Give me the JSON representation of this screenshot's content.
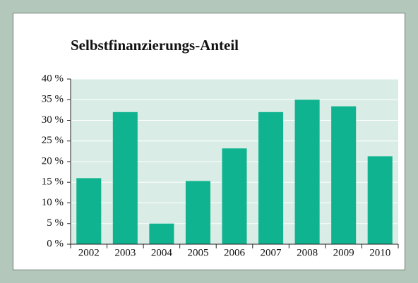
{
  "chart_data": {
    "type": "bar",
    "title": "Selbstfinanzierungs-Anteil",
    "categories": [
      "2002",
      "2003",
      "2004",
      "2005",
      "2006",
      "2007",
      "2008",
      "2009",
      "2010"
    ],
    "values": [
      16,
      32,
      5,
      15.3,
      23.2,
      32,
      35,
      33.4,
      21.3
    ],
    "color": "#10b38f",
    "ylim": [
      0,
      40
    ],
    "yticks": [
      {
        "value": 0,
        "label": "0 %"
      },
      {
        "value": 5,
        "label": "5 %"
      },
      {
        "value": 10,
        "label": "10 %"
      },
      {
        "value": 15,
        "label": "15 %"
      },
      {
        "value": 20,
        "label": "20 %"
      },
      {
        "value": 25,
        "label": "25 %"
      },
      {
        "value": 30,
        "label": "30 %"
      },
      {
        "value": 35,
        "label": "35 %"
      },
      {
        "value": 40,
        "label": "40 %"
      }
    ],
    "grid": true
  }
}
